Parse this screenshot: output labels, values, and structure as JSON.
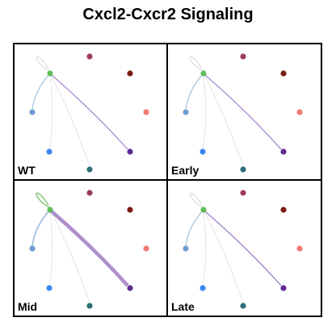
{
  "title": "Cxcl2-Cxcr2 Signaling",
  "node_colors": [
    "#5fbf5a",
    "#9e3a63",
    "#7a1a10",
    "#f07a72",
    "#5d2a93",
    "#2f6f7a",
    "#3a86f2",
    "#6f9ccf"
  ],
  "edge_colors": {
    "to_purple": "#a07cc4",
    "to_blue": "#9ec0dd",
    "faint": "#cfd6de",
    "self_loop": "#c9ccd0",
    "self_loop_mid": "#8cc97e"
  },
  "panels": [
    {
      "label": "WT",
      "purple_weight": 1.4,
      "blue_weight": 1.2,
      "loop_weight": 0.8
    },
    {
      "label": "Early",
      "purple_weight": 1.4,
      "blue_weight": 1.2,
      "loop_weight": 0.8
    },
    {
      "label": "Mid",
      "purple_weight": 4.5,
      "blue_weight": 1.8,
      "loop_weight": 1.6
    },
    {
      "label": "Late",
      "purple_weight": 1.6,
      "blue_weight": 1.2,
      "loop_weight": 0.8
    }
  ]
}
